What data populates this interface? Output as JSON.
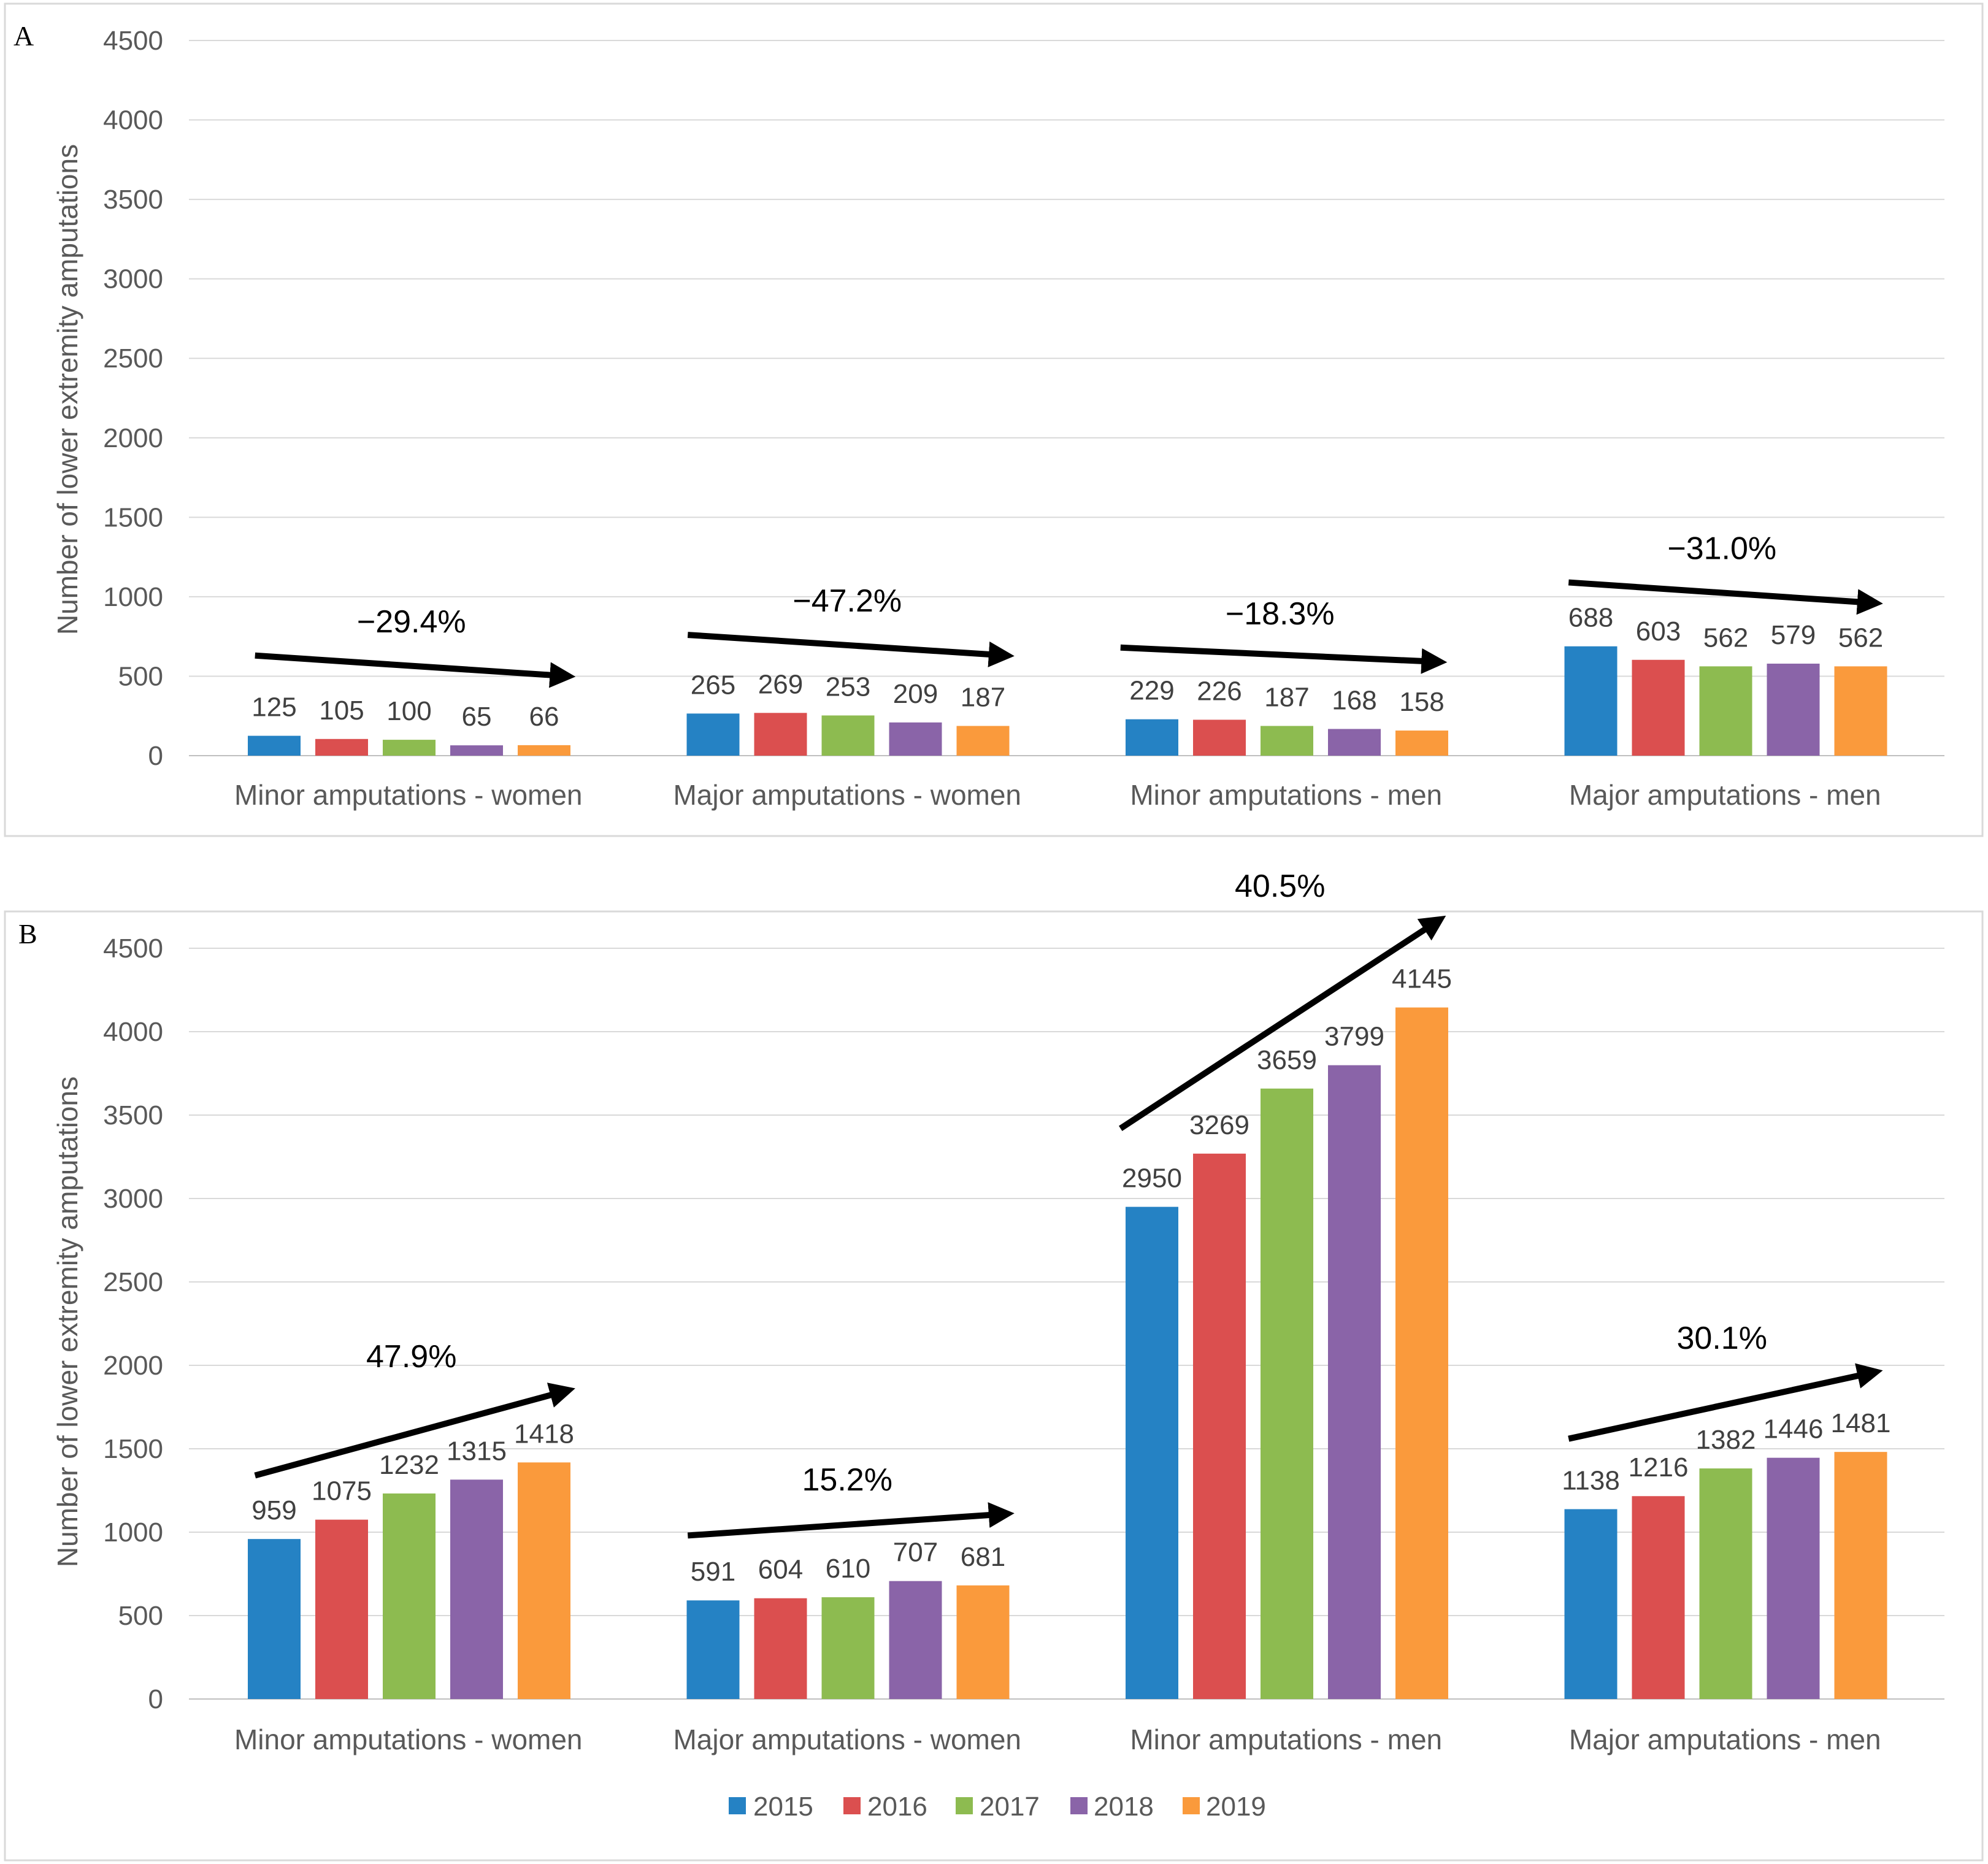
{
  "series_colors": [
    "#2582C4",
    "#DB4F4F",
    "#8DBB50",
    "#8A64A8",
    "#FA9A3C"
  ],
  "legend": {
    "items": [
      {
        "label": "2015",
        "color": "#2582C4"
      },
      {
        "label": "2016",
        "color": "#DB4F4F"
      },
      {
        "label": "2017",
        "color": "#8DBB50"
      },
      {
        "label": "2018",
        "color": "#8A64A8"
      },
      {
        "label": "2019",
        "color": "#FA9A3C"
      }
    ],
    "position": "bottom-center"
  },
  "chart_data": [
    {
      "panel": "A",
      "type": "bar",
      "title": "",
      "xlabel": "",
      "ylabel": "Number of lower extremity amputations",
      "ylim": [
        0,
        4500
      ],
      "yticks": [
        0,
        500,
        1000,
        1500,
        2000,
        2500,
        3000,
        3500,
        4000,
        4500
      ],
      "grid": true,
      "categories": [
        "Minor amputations - women",
        "Major amputations - women",
        "Minor amputations - men",
        "Major amputations - men"
      ],
      "series": [
        {
          "name": "2015",
          "values": [
            125,
            265,
            229,
            688
          ]
        },
        {
          "name": "2016",
          "values": [
            105,
            269,
            226,
            603
          ]
        },
        {
          "name": "2017",
          "values": [
            100,
            253,
            187,
            562
          ]
        },
        {
          "name": "2018",
          "values": [
            65,
            209,
            168,
            579
          ]
        },
        {
          "name": "2019",
          "values": [
            66,
            187,
            158,
            562
          ]
        }
      ],
      "annotations": [
        {
          "text": "−29.4%",
          "direction": "down",
          "from_value": 630,
          "to_value": 500
        },
        {
          "text": "−47.2%",
          "direction": "down",
          "from_value": 760,
          "to_value": 630
        },
        {
          "text": "−18.3%",
          "direction": "down",
          "from_value": 680,
          "to_value": 590
        },
        {
          "text": "−31.0%",
          "direction": "down",
          "from_value": 1090,
          "to_value": 960
        }
      ]
    },
    {
      "panel": "B",
      "type": "bar",
      "title": "",
      "xlabel": "",
      "ylabel": "Number of lower extremity amputations",
      "ylim": [
        0,
        4500
      ],
      "yticks": [
        0,
        500,
        1000,
        1500,
        2000,
        2500,
        3000,
        3500,
        4000,
        4500
      ],
      "grid": true,
      "categories": [
        "Minor amputations - women",
        "Major amputations - women",
        "Minor amputations - men",
        "Major amputations - men"
      ],
      "series": [
        {
          "name": "2015",
          "values": [
            959,
            591,
            2950,
            1138
          ]
        },
        {
          "name": "2016",
          "values": [
            1075,
            604,
            3269,
            1216
          ]
        },
        {
          "name": "2017",
          "values": [
            1232,
            610,
            3659,
            1382
          ]
        },
        {
          "name": "2018",
          "values": [
            1315,
            707,
            3799,
            1446
          ]
        },
        {
          "name": "2019",
          "values": [
            1418,
            681,
            4145,
            1481
          ]
        }
      ],
      "annotations": [
        {
          "text": "47.9%",
          "direction": "up",
          "from_value": 1340,
          "to_value": 1850
        },
        {
          "text": "15.2%",
          "direction": "up",
          "from_value": 980,
          "to_value": 1110
        },
        {
          "text": "40.5%",
          "direction": "up",
          "from_value": 3420,
          "to_value": 4670
        },
        {
          "text": "30.1%",
          "direction": "up",
          "from_value": 1560,
          "to_value": 1960
        }
      ]
    }
  ]
}
